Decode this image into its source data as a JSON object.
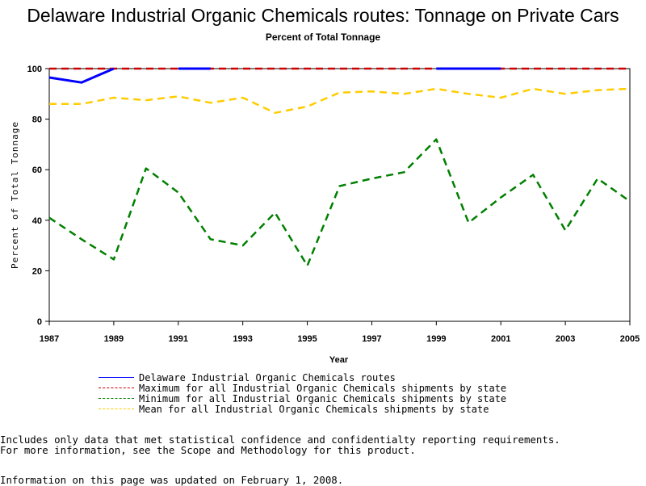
{
  "chart_data": {
    "type": "line",
    "title": "Delaware Industrial Organic Chemicals routes: Tonnage on Private Cars",
    "subtitle": "Percent of Total Tonnage",
    "xlabel": "Year",
    "ylabel": "Percent of Total Tonnage",
    "xlim": [
      1987,
      2005
    ],
    "ylim": [
      0,
      100
    ],
    "x_ticks": [
      "1987",
      "1989",
      "1991",
      "1993",
      "1995",
      "1997",
      "1999",
      "2001",
      "2003",
      "2005"
    ],
    "y_ticks": [
      "0",
      "20",
      "40",
      "60",
      "80",
      "100"
    ],
    "grid": false,
    "legend_position": "bottom",
    "series": [
      {
        "name": "Delaware Industrial Organic Chemicals routes",
        "color": "#0000ff",
        "dash": "solid",
        "segments": [
          [
            [
              1987,
              96.5
            ],
            [
              1988,
              94.5
            ],
            [
              1989,
              100
            ]
          ],
          [
            [
              1991,
              100
            ],
            [
              1992,
              100
            ]
          ],
          [
            [
              1999,
              100
            ],
            [
              2001,
              100
            ]
          ]
        ]
      },
      {
        "name": "Maximum for all Industrial Organic Chemicals shipments by state",
        "color": "#cc0000",
        "dash": "dashed",
        "segments": [
          [
            [
              1987,
              100
            ],
            [
              1988,
              100
            ],
            [
              1989,
              100
            ],
            [
              1990,
              100
            ],
            [
              1991,
              100
            ],
            [
              1992,
              100
            ],
            [
              1993,
              100
            ],
            [
              1994,
              100
            ],
            [
              1995,
              100
            ],
            [
              1996,
              100
            ],
            [
              1997,
              100
            ],
            [
              1998,
              100
            ],
            [
              1999,
              100
            ],
            [
              2000,
              100
            ],
            [
              2001,
              100
            ],
            [
              2002,
              100
            ],
            [
              2003,
              100
            ],
            [
              2004,
              100
            ],
            [
              2005,
              100
            ]
          ]
        ]
      },
      {
        "name": "Minimum for all Industrial Organic Chemicals shipments by state",
        "color": "#008000",
        "dash": "dashed",
        "segments": [
          [
            [
              1987,
              41
            ],
            [
              1988,
              32.5
            ],
            [
              1989,
              24.5
            ],
            [
              1990,
              60.5
            ],
            [
              1991,
              51
            ],
            [
              1992,
              32.5
            ],
            [
              1993,
              30
            ],
            [
              1994,
              43
            ],
            [
              1995,
              22
            ],
            [
              1996,
              53.5
            ],
            [
              1997,
              56.5
            ],
            [
              1998,
              59
            ],
            [
              1999,
              72
            ],
            [
              2000,
              39
            ],
            [
              2001,
              49
            ],
            [
              2002,
              58
            ],
            [
              2003,
              36
            ],
            [
              2004,
              56.5
            ],
            [
              2005,
              47.5
            ]
          ]
        ]
      },
      {
        "name": "Mean for all Industrial Organic Chemicals shipments by state",
        "color": "#ffcc00",
        "dash": "dashed",
        "segments": [
          [
            [
              1987,
              86
            ],
            [
              1988,
              86
            ],
            [
              1989,
              88.5
            ],
            [
              1990,
              87.5
            ],
            [
              1991,
              89
            ],
            [
              1992,
              86.5
            ],
            [
              1993,
              88.5
            ],
            [
              1994,
              82.5
            ],
            [
              1995,
              85
            ],
            [
              1996,
              90.5
            ],
            [
              1997,
              91
            ],
            [
              1998,
              90
            ],
            [
              1999,
              92
            ],
            [
              2000,
              90
            ],
            [
              2001,
              88.5
            ],
            [
              2002,
              92
            ],
            [
              2003,
              90
            ],
            [
              2004,
              91.5
            ],
            [
              2005,
              92
            ]
          ]
        ]
      }
    ]
  },
  "notes": {
    "line1": "Includes only data that met statistical confidence and confidentialty reporting requirements.",
    "line2": "For more information, see the Scope and Methodology for this product.",
    "updated": "Information on this page was updated on February 1, 2008."
  }
}
